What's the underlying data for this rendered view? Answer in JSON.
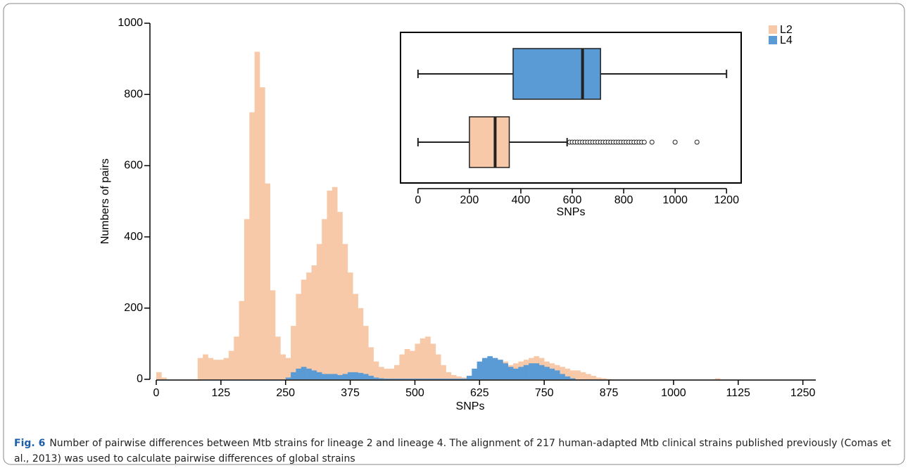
{
  "chart_data": [
    {
      "type": "histogram",
      "x_label": "SNPs",
      "y_label": "Numbers of pairs",
      "xlim": [
        0,
        1275
      ],
      "ylim": [
        0,
        1000
      ],
      "xticks": [
        0,
        125,
        250,
        375,
        500,
        625,
        750,
        875,
        1000,
        1125,
        1250
      ],
      "yticks": [
        0,
        200,
        400,
        600,
        800,
        1000
      ],
      "legend": "top-right",
      "bins": [
        0,
        10,
        20,
        30,
        40,
        50,
        60,
        70,
        80,
        90,
        100,
        110,
        120,
        130,
        140,
        150,
        160,
        170,
        180,
        190,
        200,
        210,
        220,
        230,
        240,
        250,
        260,
        270,
        280,
        290,
        300,
        310,
        320,
        330,
        340,
        350,
        360,
        370,
        380,
        390,
        400,
        410,
        420,
        430,
        440,
        450,
        460,
        470,
        480,
        490,
        500,
        510,
        520,
        530,
        540,
        550,
        560,
        570,
        580,
        590,
        600,
        610,
        620,
        630,
        640,
        650,
        660,
        670,
        680,
        690,
        700,
        710,
        720,
        730,
        740,
        750,
        760,
        770,
        780,
        790,
        800,
        810,
        820,
        830,
        840,
        850,
        860,
        870,
        880,
        890,
        900,
        910,
        920,
        930,
        940,
        950,
        960,
        970,
        980,
        990,
        1000,
        1010,
        1020,
        1030,
        1040,
        1050,
        1060,
        1070,
        1080,
        1090,
        1100,
        1110,
        1120,
        1130,
        1140,
        1150,
        1160,
        1170,
        1180,
        1190,
        1200,
        1210,
        1220,
        1230,
        1240,
        1250,
        1260,
        1270
      ],
      "series": [
        {
          "name": "L2",
          "color": "#f7c9a8",
          "values": [
            20,
            5,
            0,
            0,
            0,
            0,
            0,
            0,
            60,
            70,
            60,
            55,
            55,
            60,
            80,
            120,
            220,
            450,
            750,
            920,
            820,
            550,
            250,
            120,
            70,
            60,
            150,
            240,
            280,
            300,
            320,
            380,
            450,
            530,
            540,
            470,
            380,
            300,
            240,
            200,
            150,
            90,
            50,
            35,
            30,
            30,
            40,
            70,
            85,
            80,
            100,
            115,
            120,
            100,
            70,
            40,
            20,
            12,
            8,
            5,
            5,
            10,
            25,
            40,
            50,
            55,
            55,
            50,
            40,
            45,
            50,
            55,
            60,
            65,
            60,
            50,
            45,
            40,
            35,
            30,
            25,
            25,
            20,
            15,
            10,
            5,
            3,
            1,
            0,
            0,
            0,
            0,
            0,
            0,
            0,
            0,
            0,
            0,
            0,
            0,
            0,
            0,
            0,
            0,
            0,
            0,
            0,
            0,
            3,
            0,
            0,
            0,
            0,
            0,
            0,
            0,
            0,
            0,
            0,
            0,
            0,
            0,
            0,
            0,
            0,
            0,
            0
          ]
        },
        {
          "name": "L4",
          "color": "#5b9bd5",
          "values": [
            0,
            0,
            0,
            0,
            0,
            0,
            0,
            0,
            0,
            0,
            0,
            0,
            0,
            0,
            0,
            0,
            0,
            0,
            0,
            0,
            0,
            0,
            0,
            0,
            0,
            5,
            20,
            30,
            35,
            30,
            25,
            20,
            15,
            15,
            15,
            12,
            15,
            20,
            20,
            18,
            15,
            10,
            5,
            3,
            2,
            2,
            2,
            2,
            2,
            2,
            2,
            2,
            2,
            2,
            2,
            2,
            2,
            2,
            2,
            2,
            10,
            30,
            50,
            60,
            65,
            60,
            55,
            45,
            35,
            30,
            35,
            40,
            45,
            45,
            40,
            35,
            30,
            25,
            15,
            8,
            3,
            0,
            0,
            0,
            0,
            0,
            0,
            0,
            0,
            0,
            0,
            0,
            0,
            0,
            0,
            0,
            0,
            0,
            0,
            0,
            0,
            0,
            0,
            0,
            0,
            0,
            0,
            0,
            0,
            0,
            0,
            0,
            0,
            0,
            0,
            0,
            0,
            0,
            0,
            0,
            0,
            0,
            0,
            0,
            0,
            0,
            0
          ]
        }
      ]
    },
    {
      "type": "boxplot",
      "x_label": "SNPs",
      "xlim": [
        -68,
        1257
      ],
      "xticks": [
        0,
        200,
        400,
        600,
        800,
        1000,
        1200
      ],
      "boxes": [
        {
          "color": "#5b9bd5",
          "min": 0,
          "q1": 370,
          "median": 640,
          "q3": 710,
          "max": 1200,
          "outliers": []
        },
        {
          "color": "#f7c9a8",
          "min": 0,
          "q1": 200,
          "median": 300,
          "q3": 355,
          "max": 580,
          "outliers": [
            590,
            600,
            610,
            620,
            630,
            640,
            650,
            660,
            670,
            680,
            690,
            700,
            710,
            720,
            730,
            740,
            750,
            760,
            770,
            780,
            790,
            800,
            810,
            820,
            830,
            840,
            850,
            860,
            870,
            880,
            910,
            1000,
            1085
          ]
        }
      ]
    }
  ],
  "caption": {
    "label": "Fig. 6",
    "text": "Number of pairwise differences between Mtb strains for lineage 2 and lineage 4. The alignment of 217 human-adapted Mtb clinical strains published previously (Comas et al., 2013) was used to calculate pairwise differences of global strains"
  }
}
